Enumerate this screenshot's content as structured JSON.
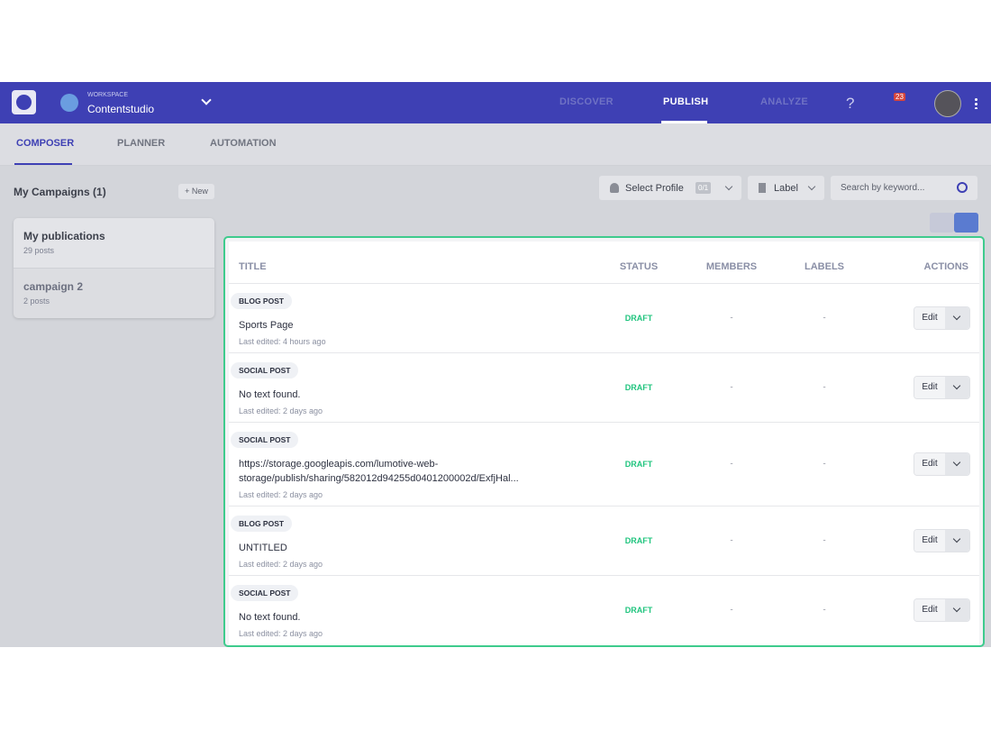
{
  "header": {
    "workspace_label": "WORKSPACE",
    "workspace_name": "Contentstudio",
    "nav": [
      "DISCOVER",
      "PUBLISH",
      "ANALYZE"
    ],
    "help": "?",
    "notifications": "23"
  },
  "tabs": [
    "COMPOSER",
    "PLANNER",
    "AUTOMATION"
  ],
  "sidebar": {
    "title": "My Campaigns (1)",
    "new_button": "New",
    "campaigns": [
      {
        "name": "My publications",
        "count": "29 posts"
      },
      {
        "name": "campaign 2",
        "count": "2 posts"
      }
    ]
  },
  "filters": {
    "profile": "Select Profile",
    "profile_count": "0/1",
    "label": "Label",
    "search_placeholder": "Search by keyword..."
  },
  "table": {
    "columns": [
      "TITLE",
      "STATUS",
      "MEMBERS",
      "LABELS",
      "ACTIONS"
    ],
    "rows": [
      {
        "type": "BLOG POST",
        "title": "Sports Page",
        "edited": "Last edited: 4 hours ago",
        "status": "DRAFT",
        "members": "-",
        "labels": "-",
        "action": "Edit"
      },
      {
        "type": "SOCIAL POST",
        "title": "No text found.",
        "edited": "Last edited: 2 days ago",
        "status": "DRAFT",
        "members": "-",
        "labels": "-",
        "action": "Edit"
      },
      {
        "type": "SOCIAL POST",
        "title": "https://storage.googleapis.com/lumotive-web-storage/publish/sharing/582012d94255d0401200002d/ExfjHal...",
        "edited": "Last edited: 2 days ago",
        "status": "DRAFT",
        "members": "-",
        "labels": "-",
        "action": "Edit"
      },
      {
        "type": "BLOG POST",
        "title": "UNTITLED",
        "edited": "Last edited: 2 days ago",
        "status": "DRAFT",
        "members": "-",
        "labels": "-",
        "action": "Edit"
      },
      {
        "type": "SOCIAL POST",
        "title": "No text found.",
        "edited": "Last edited: 2 days ago",
        "status": "DRAFT",
        "members": "-",
        "labels": "-",
        "action": "Edit"
      }
    ]
  }
}
